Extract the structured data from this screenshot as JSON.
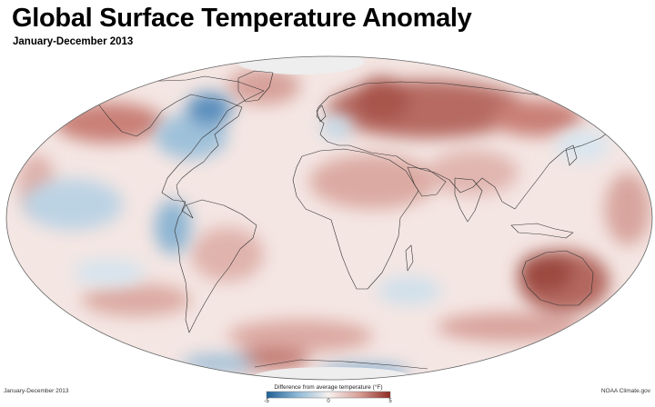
{
  "title": "Global Surface Temperature Anomaly",
  "subtitle": "January-December 2013",
  "footer": {
    "period": "January-December 2013",
    "credit": "NOAA Climate.gov"
  },
  "legend": {
    "label": "Difference from average temperature (°F)",
    "min_label": "-5",
    "mid_label": "0",
    "max_label": "5",
    "min_value": -5,
    "max_value": 5,
    "colors": {
      "cold": "#1f5f96",
      "cool": "#8fb9d6",
      "neutral": "#f6f1ef",
      "warm": "#d79f98",
      "hot": "#8e2a22"
    }
  },
  "map": {
    "projection": "Mollweide",
    "ocean_base_color": "#f4e6e3",
    "no_data_color": "#eeeeee"
  }
}
